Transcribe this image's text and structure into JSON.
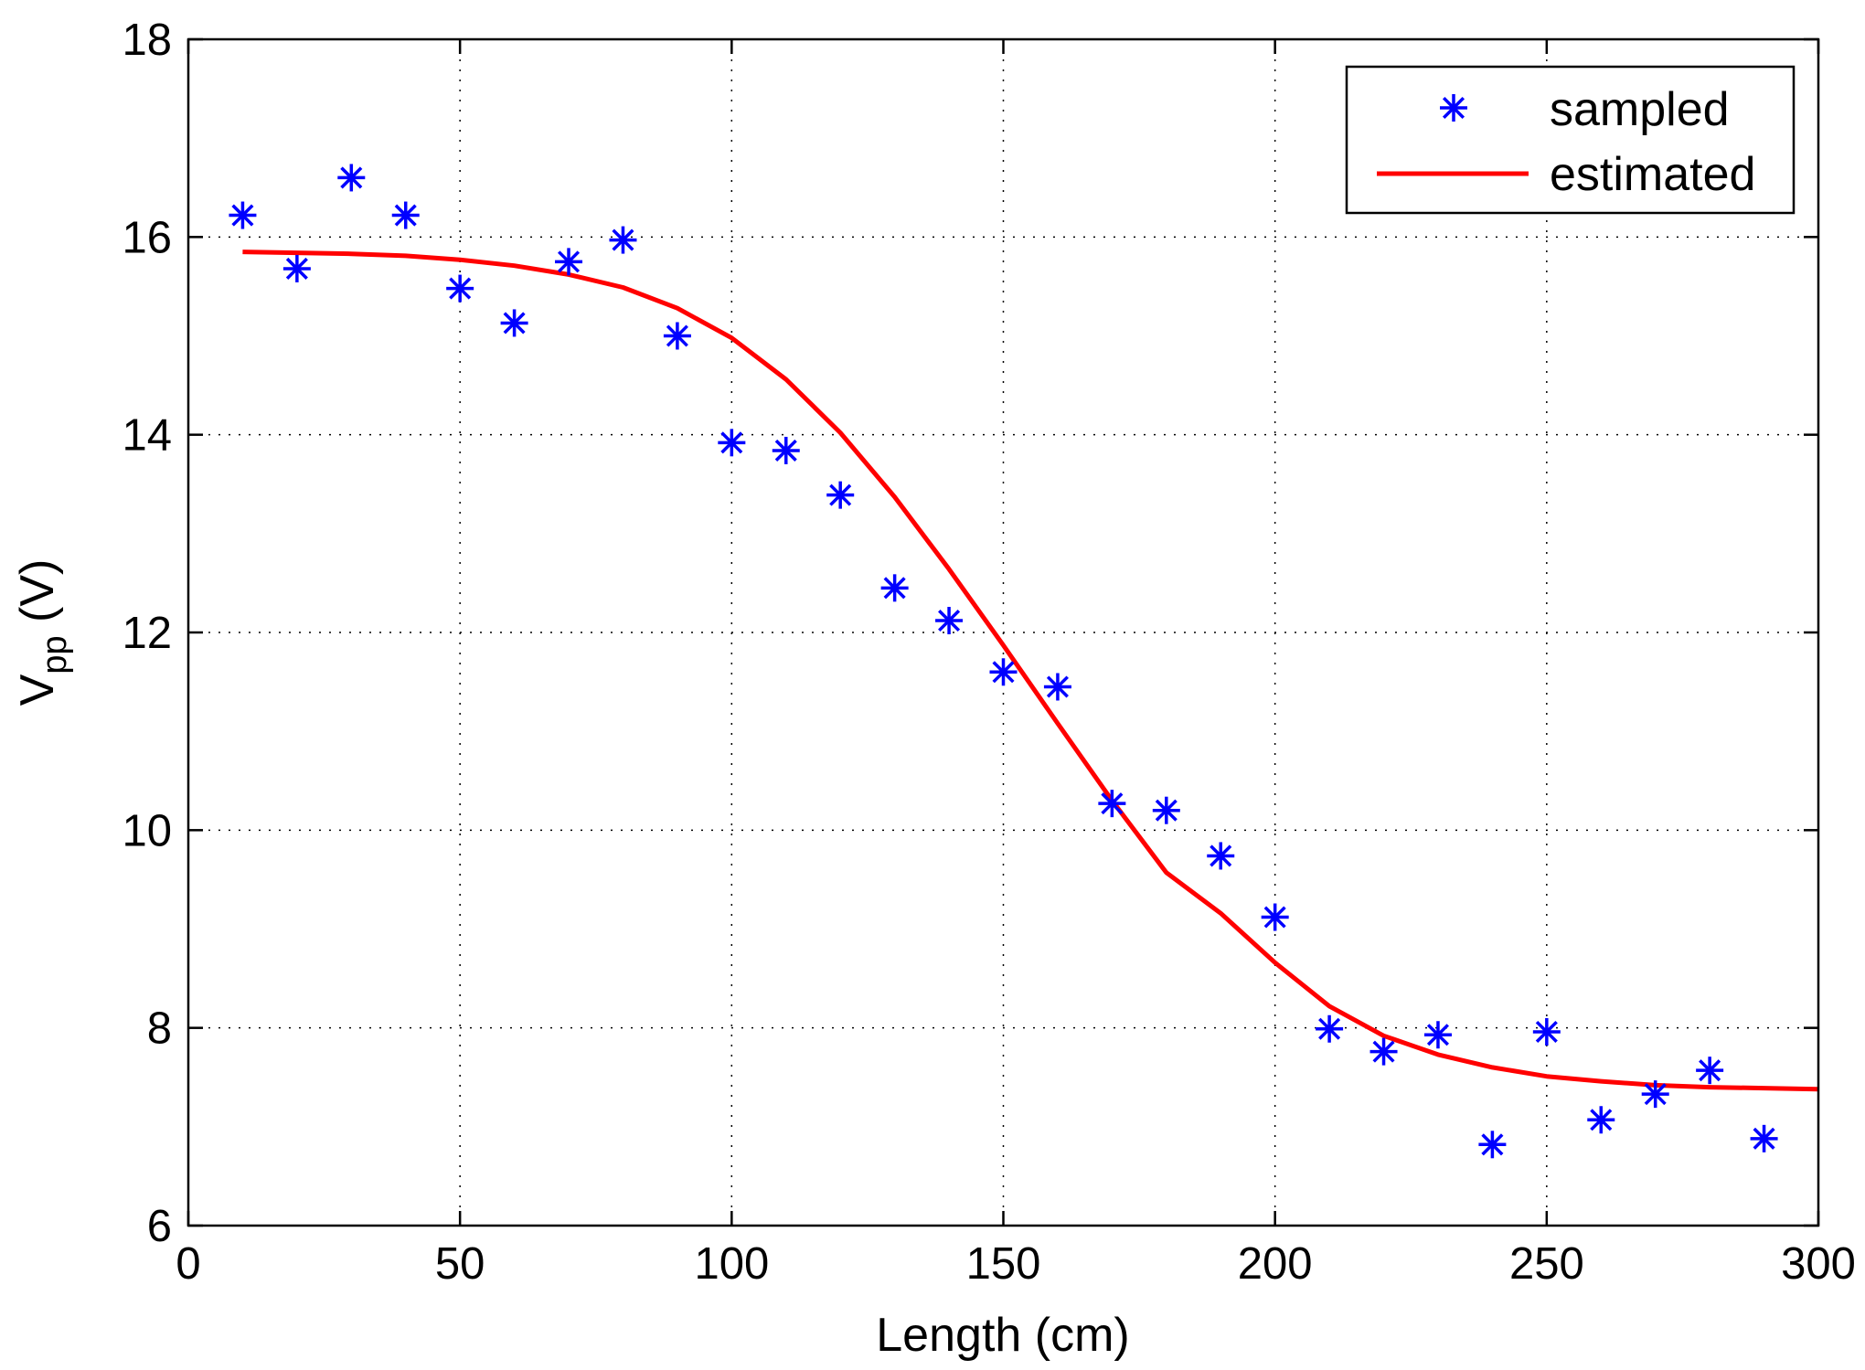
{
  "chart_data": {
    "type": "scatter",
    "title": "",
    "xlabel": "Length (cm)",
    "ylabel_main": "V",
    "ylabel_sub": "pp",
    "ylabel_unit": " (V)",
    "xlim": [
      0,
      300
    ],
    "ylim": [
      6,
      18
    ],
    "xticks": [
      0,
      50,
      100,
      150,
      200,
      250,
      300
    ],
    "yticks": [
      6,
      8,
      10,
      12,
      14,
      16,
      18
    ],
    "grid": true,
    "legend_position": "top-right",
    "series": [
      {
        "name": "sampled",
        "kind": "markers",
        "marker": "asterisk",
        "color": "#0000ff",
        "x": [
          10,
          20,
          30,
          40,
          50,
          60,
          70,
          80,
          90,
          100,
          110,
          120,
          130,
          140,
          150,
          160,
          170,
          180,
          190,
          200,
          210,
          220,
          230,
          240,
          250,
          260,
          270,
          280,
          290
        ],
        "y": [
          16.22,
          15.68,
          16.6,
          16.22,
          15.48,
          15.13,
          15.75,
          15.97,
          15.0,
          13.92,
          13.84,
          13.39,
          12.45,
          12.12,
          11.6,
          11.45,
          10.27,
          10.2,
          9.74,
          9.12,
          7.99,
          7.76,
          7.93,
          6.82,
          7.96,
          7.07,
          7.33,
          7.57,
          6.88
        ]
      },
      {
        "name": "estimated",
        "kind": "line",
        "color": "#ff0000",
        "x": [
          10,
          20,
          30,
          40,
          50,
          60,
          70,
          80,
          90,
          100,
          110,
          120,
          130,
          140,
          150,
          160,
          170,
          180,
          190,
          200,
          210,
          220,
          230,
          240,
          250,
          260,
          270,
          280,
          290,
          300
        ],
        "y": [
          15.85,
          15.84,
          15.83,
          15.81,
          15.77,
          15.71,
          15.62,
          15.49,
          15.28,
          14.98,
          14.56,
          14.02,
          13.37,
          12.64,
          11.87,
          11.08,
          10.3,
          9.57,
          9.16,
          8.66,
          8.22,
          7.92,
          7.73,
          7.6,
          7.51,
          7.46,
          7.42,
          7.4,
          7.39,
          7.38
        ]
      }
    ]
  },
  "colors": {
    "axis": "#000000",
    "grid": "#000000",
    "background": "#ffffff"
  }
}
